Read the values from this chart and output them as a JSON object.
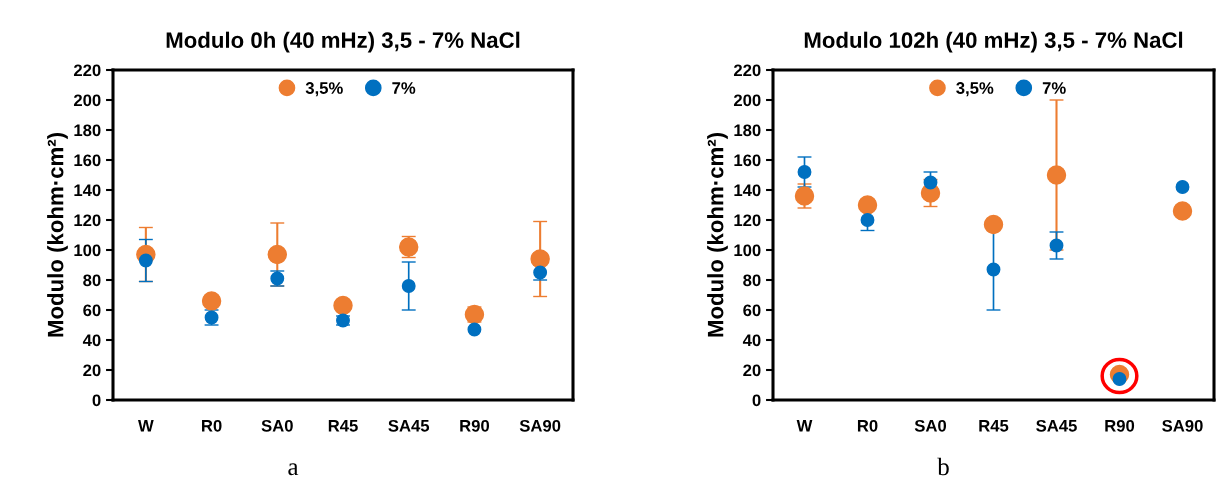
{
  "chart_data": [
    {
      "type": "scatter",
      "title": "Modulo 0h (40 mHz) 3,5 - 7% NaCl",
      "ylabel": "Modulo (kohm·cm²)",
      "categories": [
        "W",
        "R0",
        "SA0",
        "R45",
        "SA45",
        "R90",
        "SA90"
      ],
      "ylim": [
        0,
        220
      ],
      "yticks": [
        0,
        20,
        40,
        60,
        80,
        100,
        120,
        140,
        160,
        180,
        200,
        220
      ],
      "legend": "top",
      "marker": "circle",
      "grid": false,
      "annotations": [
        "a"
      ],
      "series": [
        {
          "name": "3,5%",
          "color": "#ed7d31",
          "values": [
            97,
            66,
            97,
            63,
            102,
            57,
            94
          ],
          "errors": [
            18,
            2,
            21,
            null,
            7,
            5,
            25
          ]
        },
        {
          "name": "7%",
          "color": "#0070c0",
          "values": [
            93,
            55,
            81,
            53,
            76,
            47,
            85
          ],
          "errors": [
            14,
            5,
            5,
            3,
            16,
            null,
            5
          ]
        }
      ]
    },
    {
      "type": "scatter",
      "title": "Modulo 102h (40 mHz) 3,5 - 7% NaCl",
      "ylabel": "Modulo (kohm·cm²)",
      "categories": [
        "W",
        "R0",
        "SA0",
        "R45",
        "SA45",
        "R90",
        "SA90"
      ],
      "ylim": [
        0,
        220
      ],
      "yticks": [
        0,
        20,
        40,
        60,
        80,
        100,
        120,
        140,
        160,
        180,
        200,
        220
      ],
      "legend": "top",
      "marker": "circle",
      "grid": false,
      "annotations": [
        "b"
      ],
      "series": [
        {
          "name": "3,5%",
          "color": "#ed7d31",
          "values": [
            136,
            130,
            138,
            117,
            150,
            17,
            126
          ],
          "errors": [
            8,
            null,
            9,
            null,
            50,
            null,
            null
          ]
        },
        {
          "name": "7%",
          "color": "#0070c0",
          "values": [
            152,
            120,
            145,
            87,
            103,
            14,
            142
          ],
          "errors": [
            10,
            7,
            7,
            27,
            9,
            null,
            null
          ]
        }
      ]
    }
  ]
}
